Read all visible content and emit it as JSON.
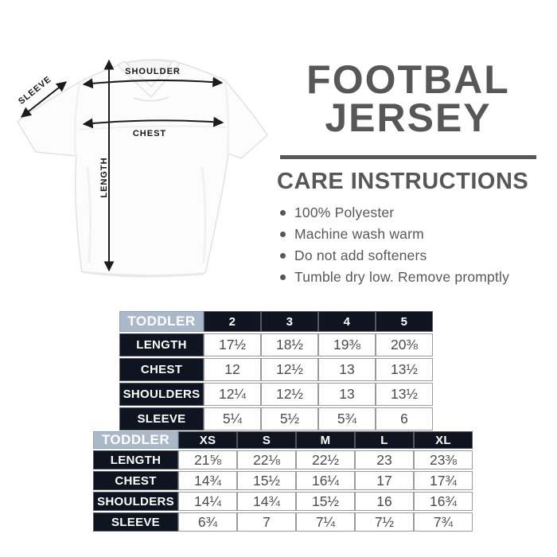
{
  "title": {
    "line1": "FOOTBAL",
    "line2": "JERSEY"
  },
  "care": {
    "heading": "CARE INSTRUCTIONS",
    "items": [
      "100% Polyester",
      "Machine wash warm",
      "Do not add softeners",
      "Tumble dry low. Remove promptly"
    ]
  },
  "diagram": {
    "shoulder_label": "SHOULDER",
    "sleeve_label": "SLEEVE",
    "chest_label": "CHEST",
    "length_label": "LENGTH"
  },
  "size_tables": [
    {
      "group_label": "TODDLER",
      "columns": [
        "2",
        "3",
        "4",
        "5"
      ],
      "rows": [
        {
          "label": "LENGTH",
          "values": [
            "17½",
            "18½",
            "19⅜",
            "20⅜"
          ]
        },
        {
          "label": "CHEST",
          "values": [
            "12",
            "12½",
            "13",
            "13½"
          ]
        },
        {
          "label": "SHOULDERS",
          "values": [
            "12¼",
            "12½",
            "13",
            "13½"
          ]
        },
        {
          "label": "SLEEVE",
          "values": [
            "5¼",
            "5½",
            "5¾",
            "6"
          ]
        }
      ]
    },
    {
      "group_label": "TODDLER",
      "columns": [
        "XS",
        "S",
        "M",
        "L",
        "XL"
      ],
      "rows": [
        {
          "label": "LENGTH",
          "values": [
            "21⅝",
            "22⅛",
            "22½",
            "23",
            "23⅜"
          ]
        },
        {
          "label": "CHEST",
          "values": [
            "14¾",
            "15½",
            "16¼",
            "17",
            "17¾"
          ]
        },
        {
          "label": "SHOULDERS",
          "values": [
            "14¼",
            "14¾",
            "15½",
            "16",
            "16¾"
          ]
        },
        {
          "label": "SLEEVE",
          "values": [
            "6¾",
            "7",
            "7¼",
            "7½",
            "7¾"
          ]
        }
      ]
    }
  ],
  "colors": {
    "navy_header": "#0f1421",
    "light_blue_header": "#a9b9ca",
    "heading_gray": "#57575a",
    "data_text_gray": "#4b4b4b",
    "arrow_black": "#1c1c1c",
    "cell_border_gray": "#9b9b9b"
  }
}
